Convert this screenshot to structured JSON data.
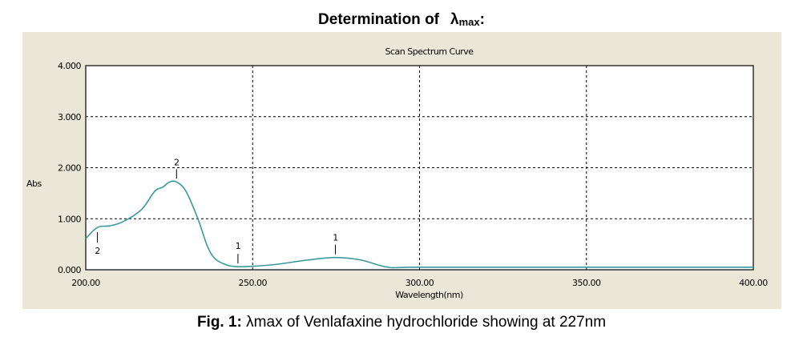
{
  "heading": {
    "text": "Determination of",
    "lambda": "λ",
    "sub": "max",
    "colon": ":"
  },
  "caption": {
    "label": "Fig. 1:",
    "text": "λmax of Venlafaxine hydrochloride showing at 227nm"
  },
  "colors": {
    "panel": "#ebe7d8",
    "curve": "#3a9a9a",
    "plot_bg": "#ffffff"
  },
  "chart_data": {
    "type": "line",
    "title": "Scan Spectrum Curve",
    "xlabel": "Wavelength(nm)",
    "ylabel": "Abs",
    "xlim": [
      200,
      400
    ],
    "ylim": [
      0,
      4
    ],
    "xticks": [
      "200.00",
      "250.00",
      "300.00",
      "350.00",
      "400.00"
    ],
    "yticks": [
      "0.000",
      "1.000",
      "2.000",
      "3.000",
      "4.000"
    ],
    "grid": true,
    "series": [
      {
        "name": "Spectrum",
        "x": [
          200,
          203.5,
          207.1,
          211.1,
          216.7,
          220.7,
          223.1,
          225.1,
          227.2,
          230,
          233.6,
          236.4,
          238.8,
          242.4,
          245.6,
          250.4,
          257.6,
          266.4,
          274.8,
          282.5,
          290.5,
          300,
          350,
          400
        ],
        "y": [
          0.61,
          0.83,
          0.86,
          0.94,
          1.18,
          1.54,
          1.62,
          1.72,
          1.72,
          1.54,
          1.0,
          0.47,
          0.21,
          0.09,
          0.06,
          0.07,
          0.11,
          0.19,
          0.24,
          0.19,
          0.05,
          0.05,
          0.05,
          0.05
        ]
      }
    ],
    "annotations": [
      {
        "label": "2",
        "x": 227.2,
        "y": 1.72,
        "kind": "peak"
      },
      {
        "label": "2",
        "x": 203.5,
        "y": 0.83,
        "kind": "valley"
      },
      {
        "label": "1",
        "x": 245.6,
        "y": 0.06,
        "kind": "valley"
      },
      {
        "label": "1",
        "x": 274.8,
        "y": 0.24,
        "kind": "peak"
      }
    ]
  }
}
